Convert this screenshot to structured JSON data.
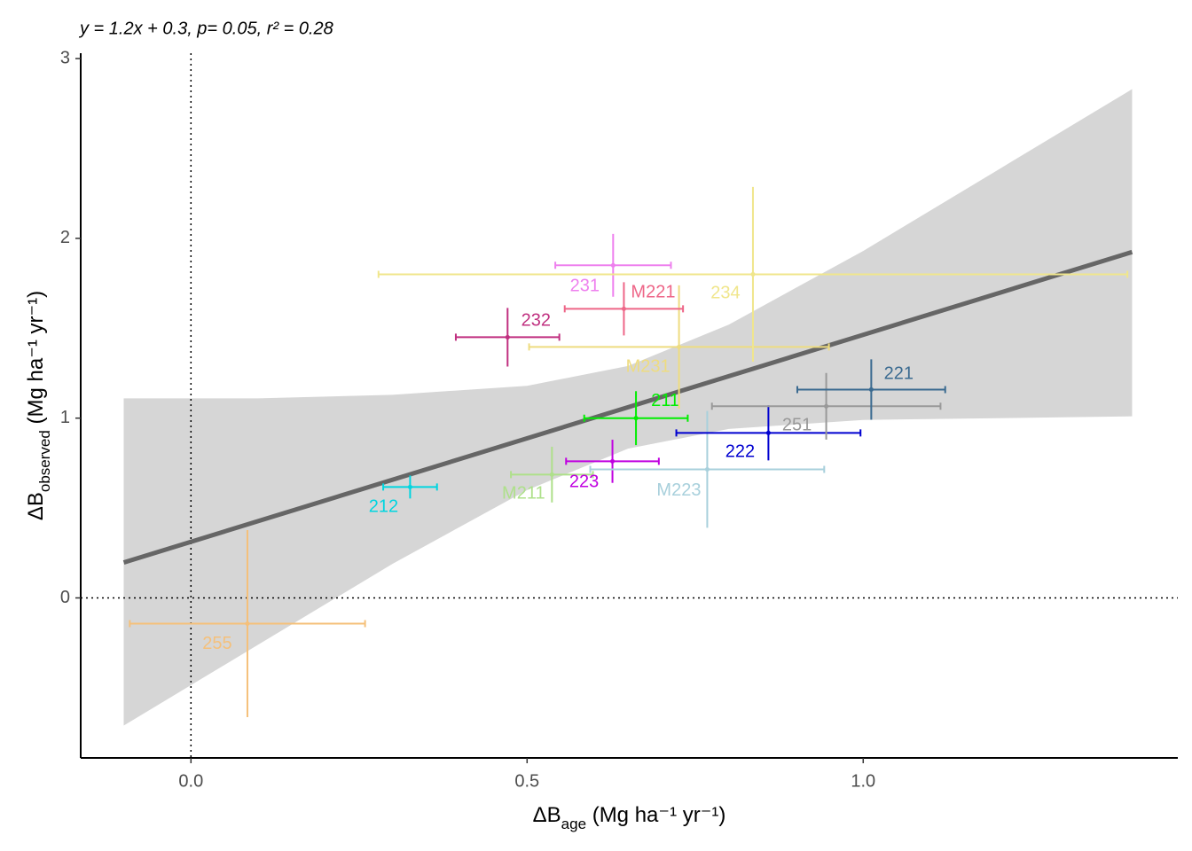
{
  "chart_data": {
    "type": "scatter",
    "annotation": "y = 1.2x + 0.3,  p= 0.05,  r² = 0.28",
    "x_label": {
      "main": "ΔB",
      "sub": "age",
      "unit": " (Mg ha⁻¹ yr⁻¹)"
    },
    "y_label": {
      "main": "ΔB",
      "sub": "observed",
      "unit": " (Mg ha⁻¹ yr⁻¹)"
    },
    "xlim": [
      -0.164,
      1.468
    ],
    "ylim": [
      -0.89,
      3.03
    ],
    "xticks": [
      {
        "value": 0,
        "label": "0.0"
      },
      0.5,
      {
        "value": 1,
        "label": "1.0"
      }
    ],
    "yticks": [
      0,
      1,
      2,
      3
    ],
    "reference_lines": {
      "x": 0,
      "y": 0
    },
    "fit": {
      "color": "#666666",
      "x": [
        -0.1,
        1.4
      ],
      "y": [
        0.197,
        1.924
      ]
    },
    "band": {
      "color": "#d6d6d6",
      "x": [
        -0.1,
        0.1,
        0.3,
        0.5,
        0.65,
        0.8,
        1.0,
        1.2,
        1.4
      ],
      "lower": [
        -0.71,
        -0.26,
        0.19,
        0.6,
        0.83,
        0.94,
        0.99,
        1.0,
        1.01
      ],
      "upper": [
        1.11,
        1.11,
        1.13,
        1.18,
        1.29,
        1.52,
        1.93,
        2.38,
        2.83
      ]
    },
    "points": [
      {
        "name": "255",
        "color": "#f5c07a",
        "x": 0.084,
        "y": -0.143,
        "xerr": 0.175,
        "yerr": 0.52
      },
      {
        "name": "212",
        "color": "#00d5e0",
        "x": 0.326,
        "y": 0.617,
        "xerr": 0.04,
        "yerr": 0.064
      },
      {
        "name": "M211",
        "color": "#aee08a",
        "x": 0.537,
        "y": 0.686,
        "xerr": 0.061,
        "yerr": 0.155
      },
      {
        "name": "223",
        "color": "#c000e0",
        "x": 0.627,
        "y": 0.76,
        "xerr": 0.069,
        "yerr": 0.12
      },
      {
        "name": "211",
        "color": "#00ee00",
        "x": 0.662,
        "y": 1.0,
        "xerr": 0.077,
        "yerr": 0.15
      },
      {
        "name": "M223",
        "color": "#a8d0dc",
        "x": 0.768,
        "y": 0.715,
        "xerr": 0.174,
        "yerr": 0.325
      },
      {
        "name": "222",
        "color": "#0000d0",
        "x": 0.859,
        "y": 0.918,
        "xerr": 0.137,
        "yerr": 0.153
      },
      {
        "name": "251",
        "color": "#999999",
        "x": 0.945,
        "y": 1.066,
        "xerr": 0.17,
        "yerr": 0.185
      },
      {
        "name": "221",
        "color": "#3a6a90",
        "x": 1.012,
        "y": 1.159,
        "xerr": 0.11,
        "yerr": 0.168
      },
      {
        "name": "M231",
        "color": "#eedc80",
        "x": 0.726,
        "y": 1.396,
        "xerr": 0.223,
        "yerr": 0.343
      },
      {
        "name": "232",
        "color": "#c03080",
        "x": 0.471,
        "y": 1.45,
        "xerr": 0.077,
        "yerr": 0.163
      },
      {
        "name": "M221",
        "color": "#ee6688",
        "x": 0.644,
        "y": 1.608,
        "xerr": 0.088,
        "yerr": 0.148
      },
      {
        "name": "231",
        "color": "#ee80ee",
        "x": 0.628,
        "y": 1.85,
        "xerr": 0.086,
        "yerr": 0.175
      },
      {
        "name": "234",
        "color": "#f0e68c",
        "x": 0.836,
        "y": 1.8,
        "xerr": 0.557,
        "yerr": 0.486
      }
    ]
  }
}
